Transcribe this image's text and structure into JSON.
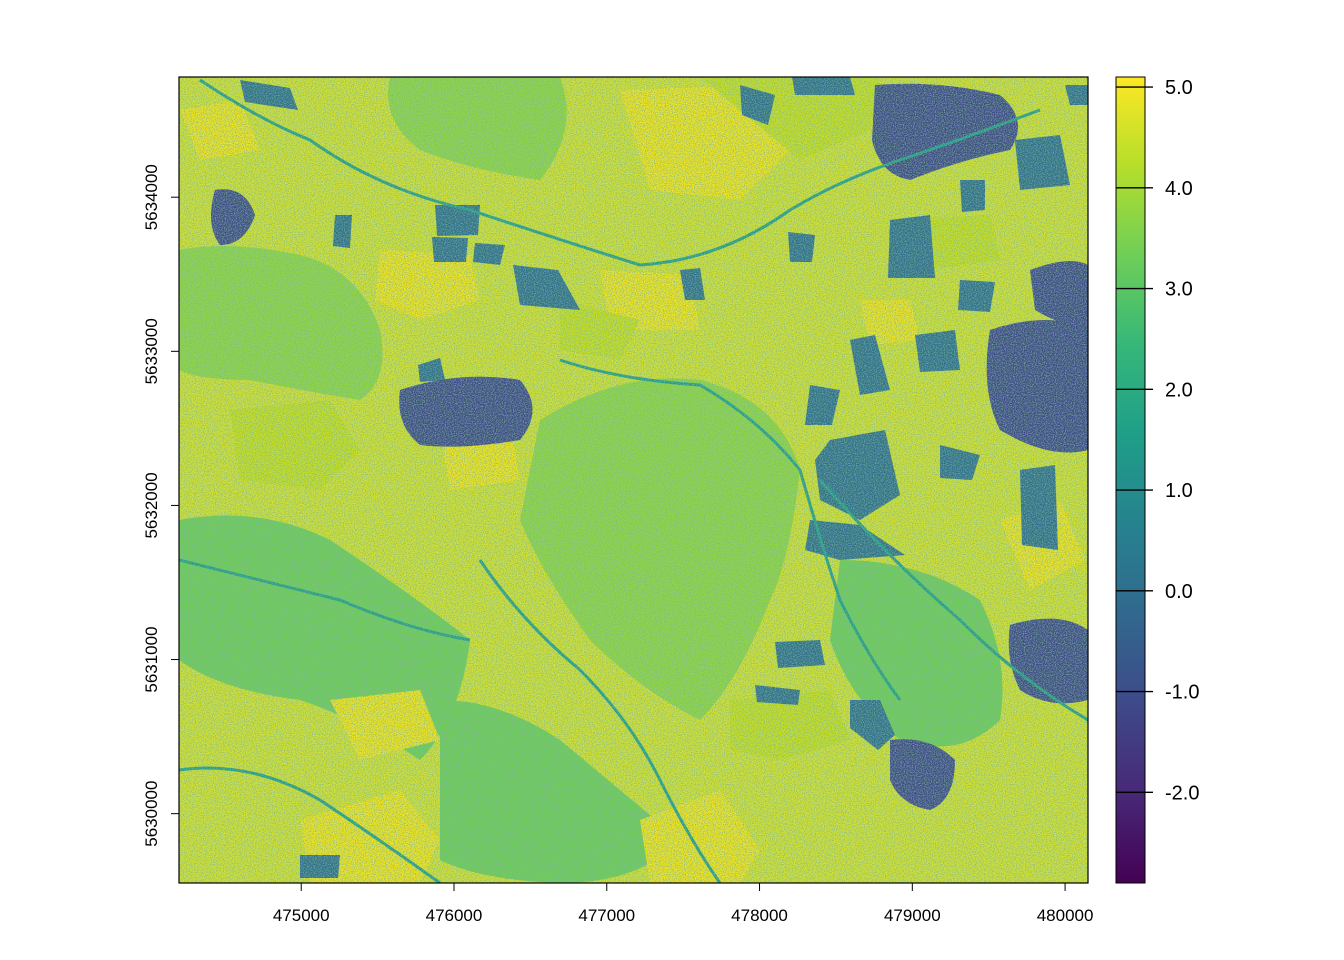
{
  "map": {
    "x_axis": {
      "ticks": [
        "475000",
        "476000",
        "477000",
        "478000",
        "479000",
        "480000"
      ],
      "tick_values": [
        475000,
        476000,
        477000,
        478000,
        479000,
        480000
      ],
      "range": [
        474200,
        480150
      ]
    },
    "y_axis": {
      "ticks": [
        "5630000",
        "5631000",
        "5632000",
        "5633000",
        "5634000"
      ],
      "tick_values": [
        5630000,
        5631000,
        5632000,
        5633000,
        5634000
      ],
      "range": [
        5629550,
        5634780
      ]
    },
    "legend": {
      "ticks": [
        "5.0",
        "4.0",
        "3.0",
        "2.0",
        "1.0",
        "0.0",
        "-1.0",
        "-2.0"
      ],
      "tick_values": [
        5,
        4,
        3,
        2,
        1,
        0,
        -1,
        -2
      ],
      "range": [
        -2.9,
        5.1
      ],
      "palette": [
        "#440154",
        "#482878",
        "#3e4a89",
        "#31688e",
        "#26828e",
        "#1f9e89",
        "#35b779",
        "#6ece58",
        "#b5de2b",
        "#fde725"
      ]
    },
    "colors": {
      "background": "#d3e231",
      "field_bright": "#f2e51d",
      "field_light": "#c8e020",
      "forest": "#8fd744",
      "forest_dark": "#6ece58",
      "dark_field": "#2e6f8e",
      "village": "#3e4a89",
      "road": "#1f9e89"
    }
  }
}
